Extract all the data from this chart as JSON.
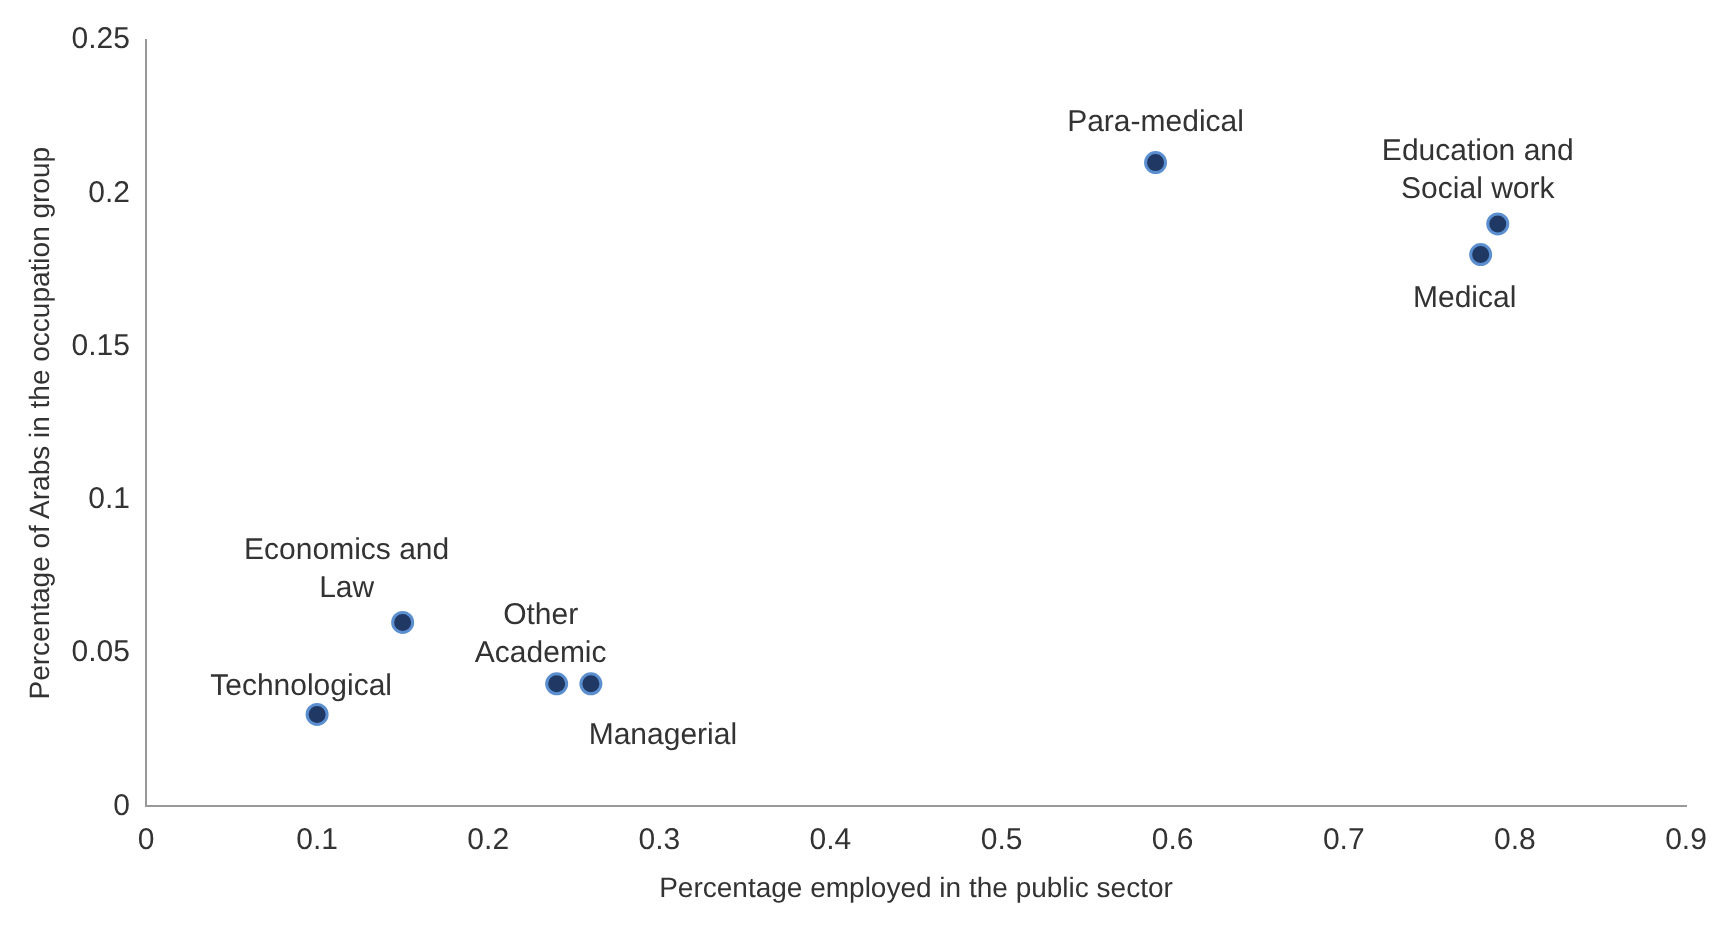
{
  "chart_data": {
    "type": "scatter",
    "xlabel": "Percentage employed in the public sector",
    "ylabel": "Percentage of Arabs in the occupation group",
    "x": [
      0.59,
      0.79,
      0.78,
      0.15,
      0.24,
      0.26,
      0.1
    ],
    "series": [
      {
        "color": "#1f3864",
        "values": [
          0.21,
          0.19,
          0.18,
          0.06,
          0.04,
          0.04,
          0.03
        ]
      }
    ],
    "xlim": [
      0,
      0.9
    ],
    "xticks": [
      0,
      0.1,
      0.2,
      0.3,
      0.4,
      0.5,
      0.6,
      0.7,
      0.8,
      0.9
    ],
    "ylim": [
      0,
      0.25
    ],
    "yticks": [
      0,
      0.05,
      0.1,
      0.15,
      0.2,
      0.25
    ],
    "grid": false,
    "legend": false,
    "marker": "circle",
    "annotations": [
      {
        "text": "Para-medical",
        "x": 0.59,
        "y": 0.21
      },
      {
        "text": "Education and Social work",
        "x": 0.79,
        "y": 0.19
      },
      {
        "text": "Medical",
        "x": 0.78,
        "y": 0.18
      },
      {
        "text": "Economics and Law",
        "x": 0.15,
        "y": 0.06
      },
      {
        "text": "Other Academic",
        "x": 0.24,
        "y": 0.04
      },
      {
        "text": "Managerial",
        "x": 0.26,
        "y": 0.04
      },
      {
        "text": "Technological",
        "x": 0.1,
        "y": 0.03
      }
    ]
  }
}
